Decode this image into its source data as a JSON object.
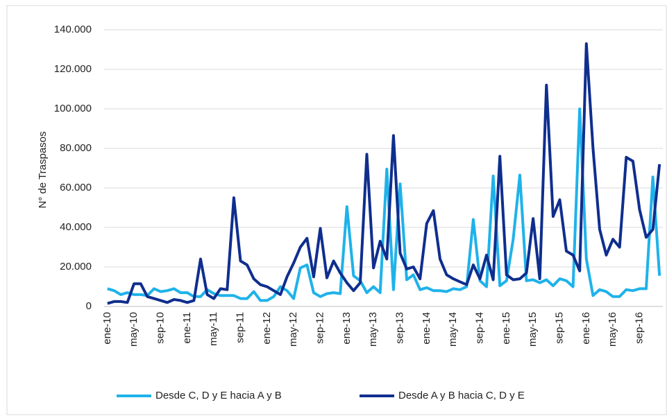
{
  "chart_data": {
    "type": "line",
    "ylabel": "N° de Traspasos",
    "categories": [
      "ene-10",
      null,
      null,
      null,
      "may-10",
      null,
      null,
      null,
      "sep-10",
      null,
      null,
      null,
      "ene-11",
      null,
      null,
      null,
      "may-11",
      null,
      null,
      null,
      "sep-11",
      null,
      null,
      null,
      "ene-12",
      null,
      null,
      null,
      "may-12",
      null,
      null,
      null,
      "sep-12",
      null,
      null,
      null,
      "ene-13",
      null,
      null,
      null,
      "may-13",
      null,
      null,
      null,
      "sep-13",
      null,
      null,
      null,
      "ene-14",
      null,
      null,
      null,
      "may-14",
      null,
      null,
      null,
      "sep-14",
      null,
      null,
      null,
      "ene-15",
      null,
      null,
      null,
      "may-15",
      null,
      null,
      null,
      "sep-15",
      null,
      null,
      null,
      "ene-16",
      null,
      null,
      null,
      "may-16",
      null,
      null,
      null,
      "sep-16",
      null,
      null,
      null
    ],
    "series": [
      {
        "name": "Desde C, D y E hacia A y B",
        "color": "#1fb2ea",
        "values": [
          9000,
          8000,
          6000,
          7000,
          6000,
          6000,
          5500,
          9000,
          7500,
          8000,
          9000,
          7000,
          7000,
          5000,
          5000,
          8500,
          6500,
          5500,
          5500,
          5500,
          4000,
          4000,
          7500,
          3000,
          3000,
          5000,
          10000,
          8000,
          4000,
          19500,
          21000,
          7000,
          5000,
          6500,
          7000,
          6500,
          50500,
          15500,
          13000,
          7000,
          10000,
          7000,
          69500,
          8500,
          62000,
          13500,
          16000,
          8500,
          9500,
          8000,
          8000,
          7500,
          9000,
          8500,
          10000,
          44000,
          13000,
          10000,
          66000,
          10500,
          13000,
          34000,
          66500,
          13000,
          13500,
          12000,
          13500,
          10500,
          14000,
          13000,
          10000,
          100000,
          24000,
          5500,
          8500,
          7500,
          5000,
          5000,
          8500,
          8000,
          9000,
          9000,
          65500,
          15500
        ]
      },
      {
        "name": "Desde A y B hacia C, D y E",
        "color": "#0f2e8e",
        "values": [
          1500,
          2500,
          2500,
          2000,
          11500,
          11500,
          5000,
          4000,
          3000,
          2000,
          3500,
          3000,
          2000,
          3000,
          24000,
          6000,
          4000,
          9000,
          8500,
          55000,
          23000,
          21000,
          14000,
          11000,
          10000,
          8000,
          6000,
          15000,
          22000,
          30000,
          34500,
          15000,
          39500,
          14500,
          23000,
          17000,
          12000,
          8000,
          12000,
          77000,
          19500,
          33000,
          24000,
          86500,
          27000,
          19000,
          20000,
          14000,
          42000,
          48500,
          24000,
          16000,
          14000,
          12500,
          11000,
          21000,
          14000,
          26000,
          13500,
          76000,
          16000,
          13500,
          14000,
          17000,
          44500,
          14000,
          112000,
          45500,
          54000,
          28000,
          26000,
          18000,
          133000,
          80000,
          39000,
          26000,
          34000,
          30000,
          75500,
          73500,
          49000,
          35000,
          39000,
          72000
        ]
      }
    ],
    "ylim": [
      0,
      140000
    ],
    "yticks": [
      0,
      {
        "value": 20000,
        "label": "20.000"
      },
      {
        "value": 40000,
        "label": "40.000"
      },
      {
        "value": 60000,
        "label": "60.000"
      },
      {
        "value": 80000,
        "label": "80.000"
      },
      {
        "value": 100000,
        "label": "100.000"
      },
      {
        "value": 120000,
        "label": "120.000"
      },
      {
        "value": 140000,
        "label": "140.000"
      }
    ],
    "grid": true,
    "legend": "bottom"
  }
}
